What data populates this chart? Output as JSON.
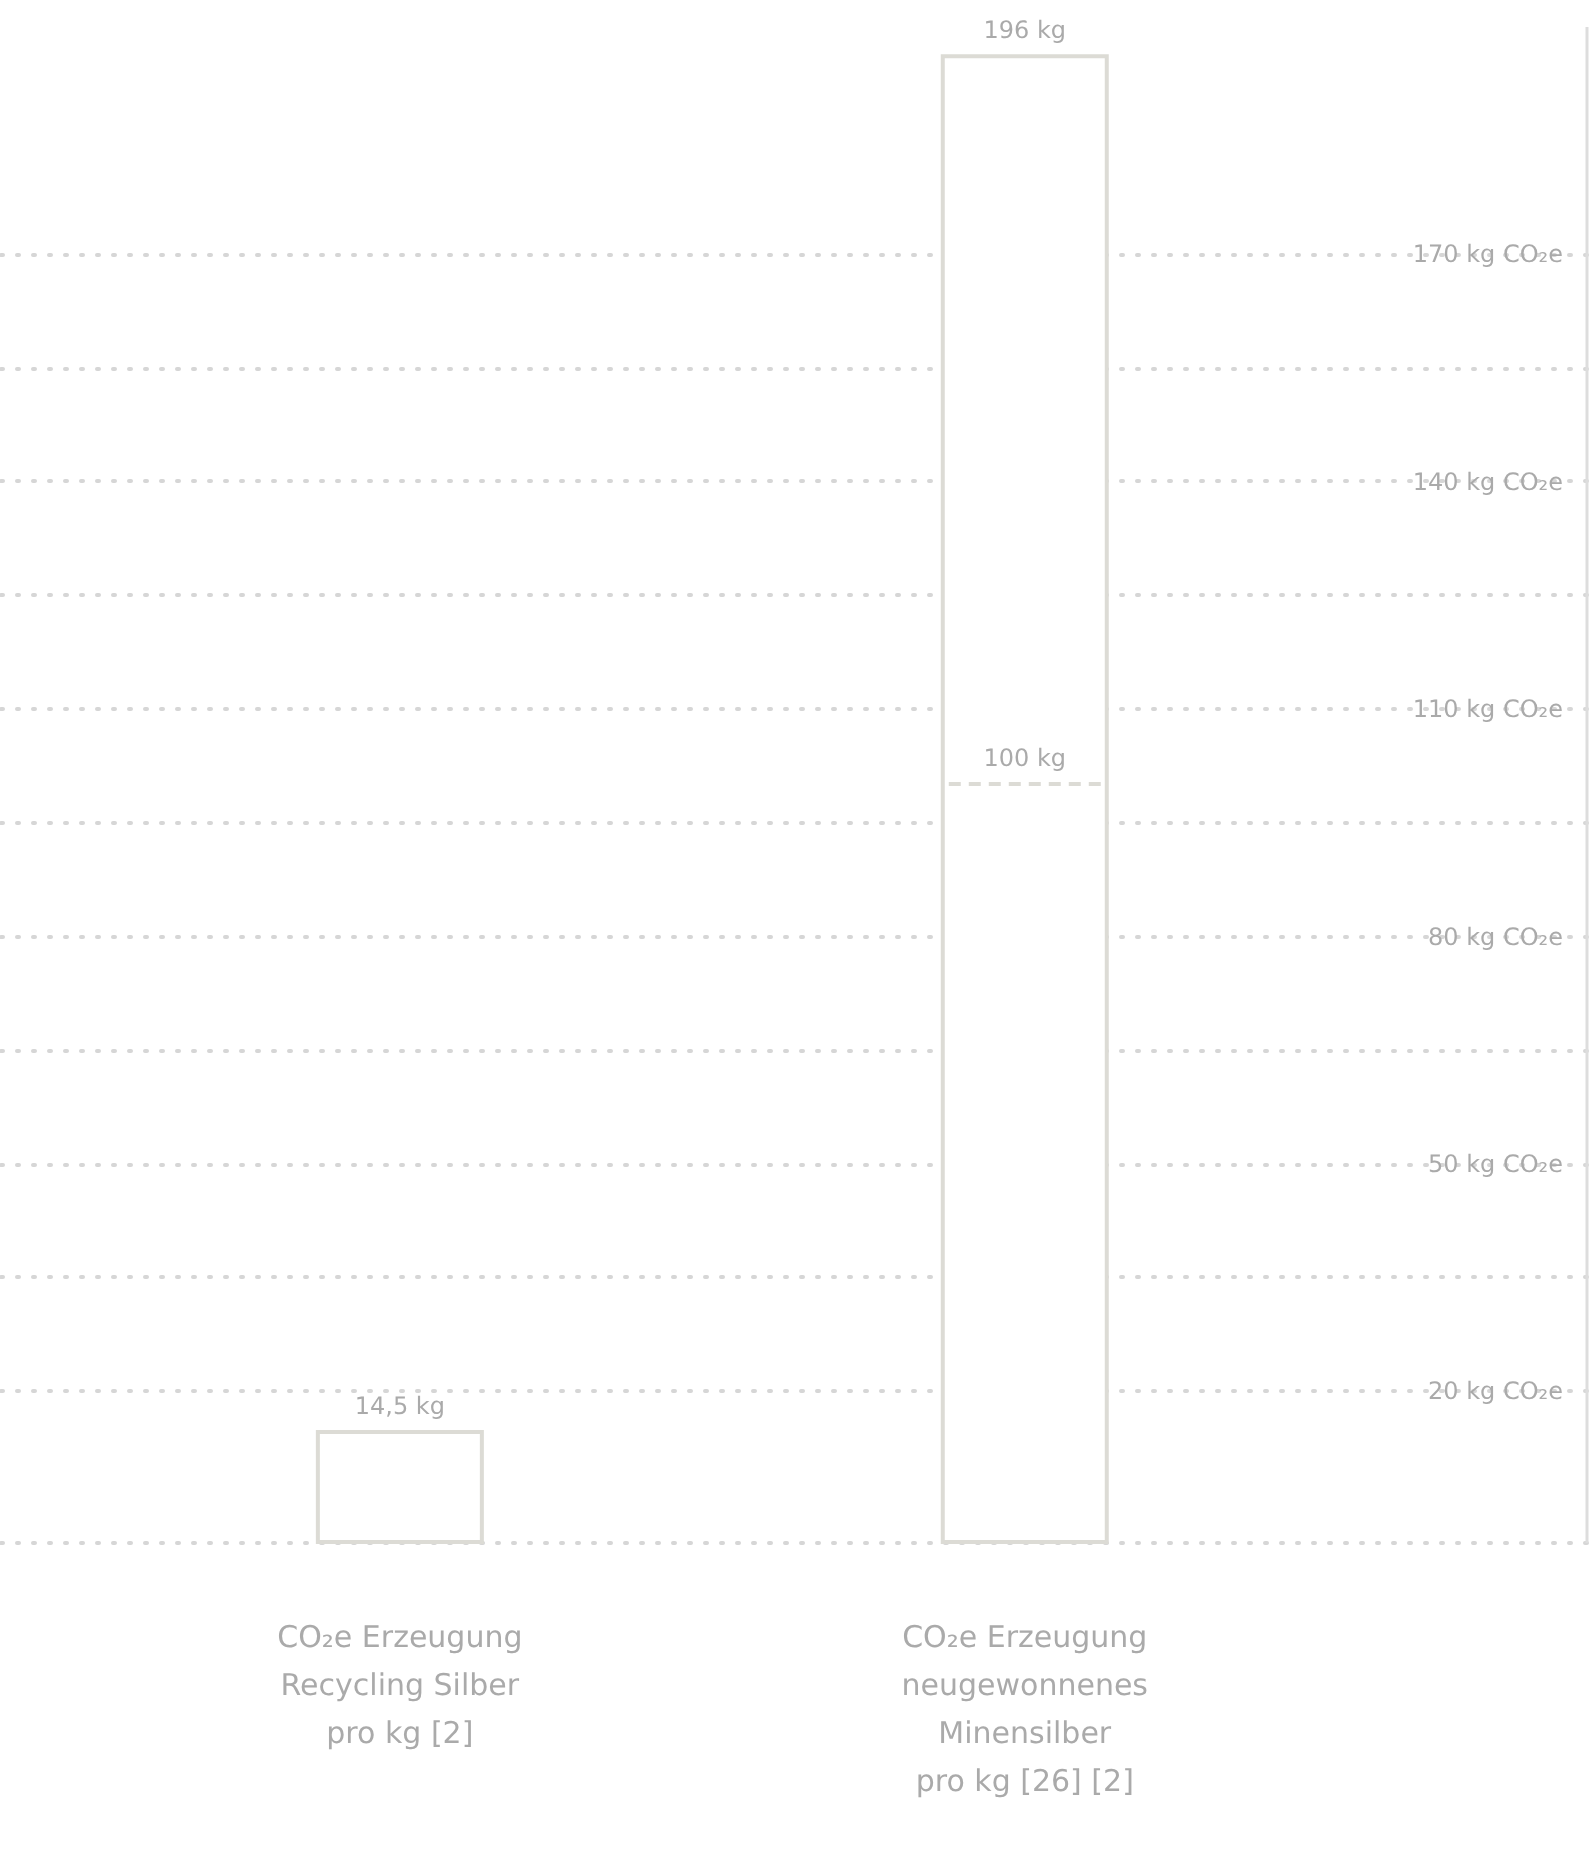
{
  "chart_data": {
    "type": "bar",
    "categories": [
      "CO₂e Erzeugung\nRecycling Silber\npro kg [2]",
      "CO₂e Erzeugung\nneugewonnenes\nMinensilber\npro kg [26] [2]"
    ],
    "values": [
      14.5,
      196
    ],
    "value_labels": [
      "14,5 kg",
      "196 kg"
    ],
    "color": "#dcdbd5",
    "ylim": [
      0,
      200
    ],
    "yticks": [
      {
        "value": 0,
        "label": null
      },
      {
        "value": 20,
        "label": "20 kg CO₂e"
      },
      {
        "value": 35,
        "label": null
      },
      {
        "value": 50,
        "label": "50 kg CO₂e"
      },
      {
        "value": 65,
        "label": null
      },
      {
        "value": 80,
        "label": "80 kg CO₂e"
      },
      {
        "value": 95,
        "label": null
      },
      {
        "value": 110,
        "label": "110 kg CO₂e"
      },
      {
        "value": 125,
        "label": null
      },
      {
        "value": 140,
        "label": "140 kg CO₂e"
      },
      {
        "value": 155,
        "label": null
      },
      {
        "value": 170,
        "label": "170 kg CO₂e"
      }
    ],
    "ref_lines": [
      {
        "axis": "y",
        "value": 100,
        "label": "100 kg",
        "line_style": "dashed",
        "color": "#dcdbd5"
      }
    ],
    "grid": "y"
  }
}
